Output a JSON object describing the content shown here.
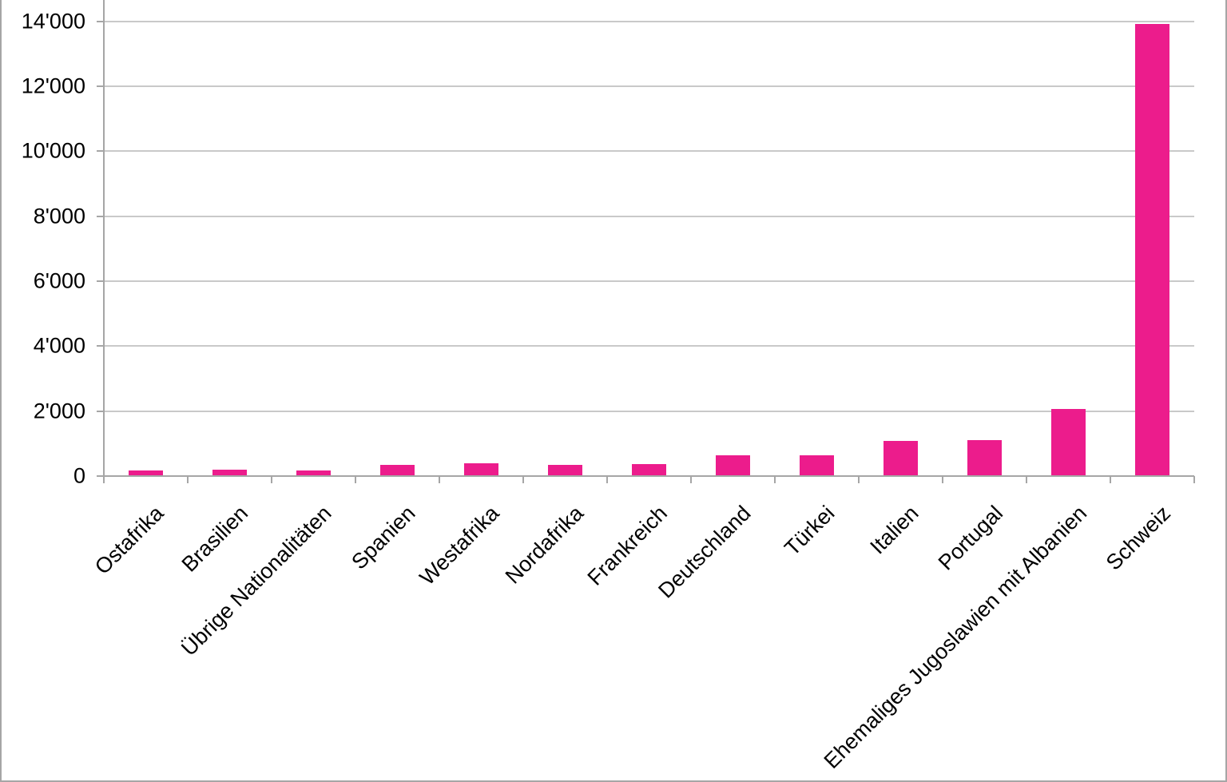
{
  "chart_data": {
    "type": "bar",
    "title": "",
    "xlabel": "",
    "ylabel": "",
    "categories": [
      "Ostafrika",
      "Brasilien",
      "Übrige Nationalitäten",
      "Spanien",
      "Westafrika",
      "Nordafrika",
      "Frankreich",
      "Deutschland",
      "Türkei",
      "Italien",
      "Portugal",
      "Ehemaliges Jugoslawien mit Albanien",
      "Schweiz"
    ],
    "values": [
      150,
      180,
      140,
      310,
      360,
      330,
      340,
      620,
      620,
      1050,
      1090,
      2050,
      13880
    ],
    "y_ticks": [
      {
        "value": 0,
        "label": "0"
      },
      {
        "value": 2000,
        "label": "2'000"
      },
      {
        "value": 4000,
        "label": "4'000"
      },
      {
        "value": 6000,
        "label": "6'000"
      },
      {
        "value": 8000,
        "label": "8'000"
      },
      {
        "value": 10000,
        "label": "10'000"
      },
      {
        "value": 12000,
        "label": "12'000"
      },
      {
        "value": 14000,
        "label": "14'000"
      }
    ],
    "ylim": [
      0,
      14650
    ],
    "grid": true,
    "legend": false,
    "x_label_rotation_deg": 45,
    "colors": {
      "bar": "#ec1c8c",
      "gridline": "#c9c9c9",
      "axis": "#a6a6a6",
      "text": "#000000",
      "background": "#ffffff",
      "frame_border": "#a6a6a6"
    }
  }
}
